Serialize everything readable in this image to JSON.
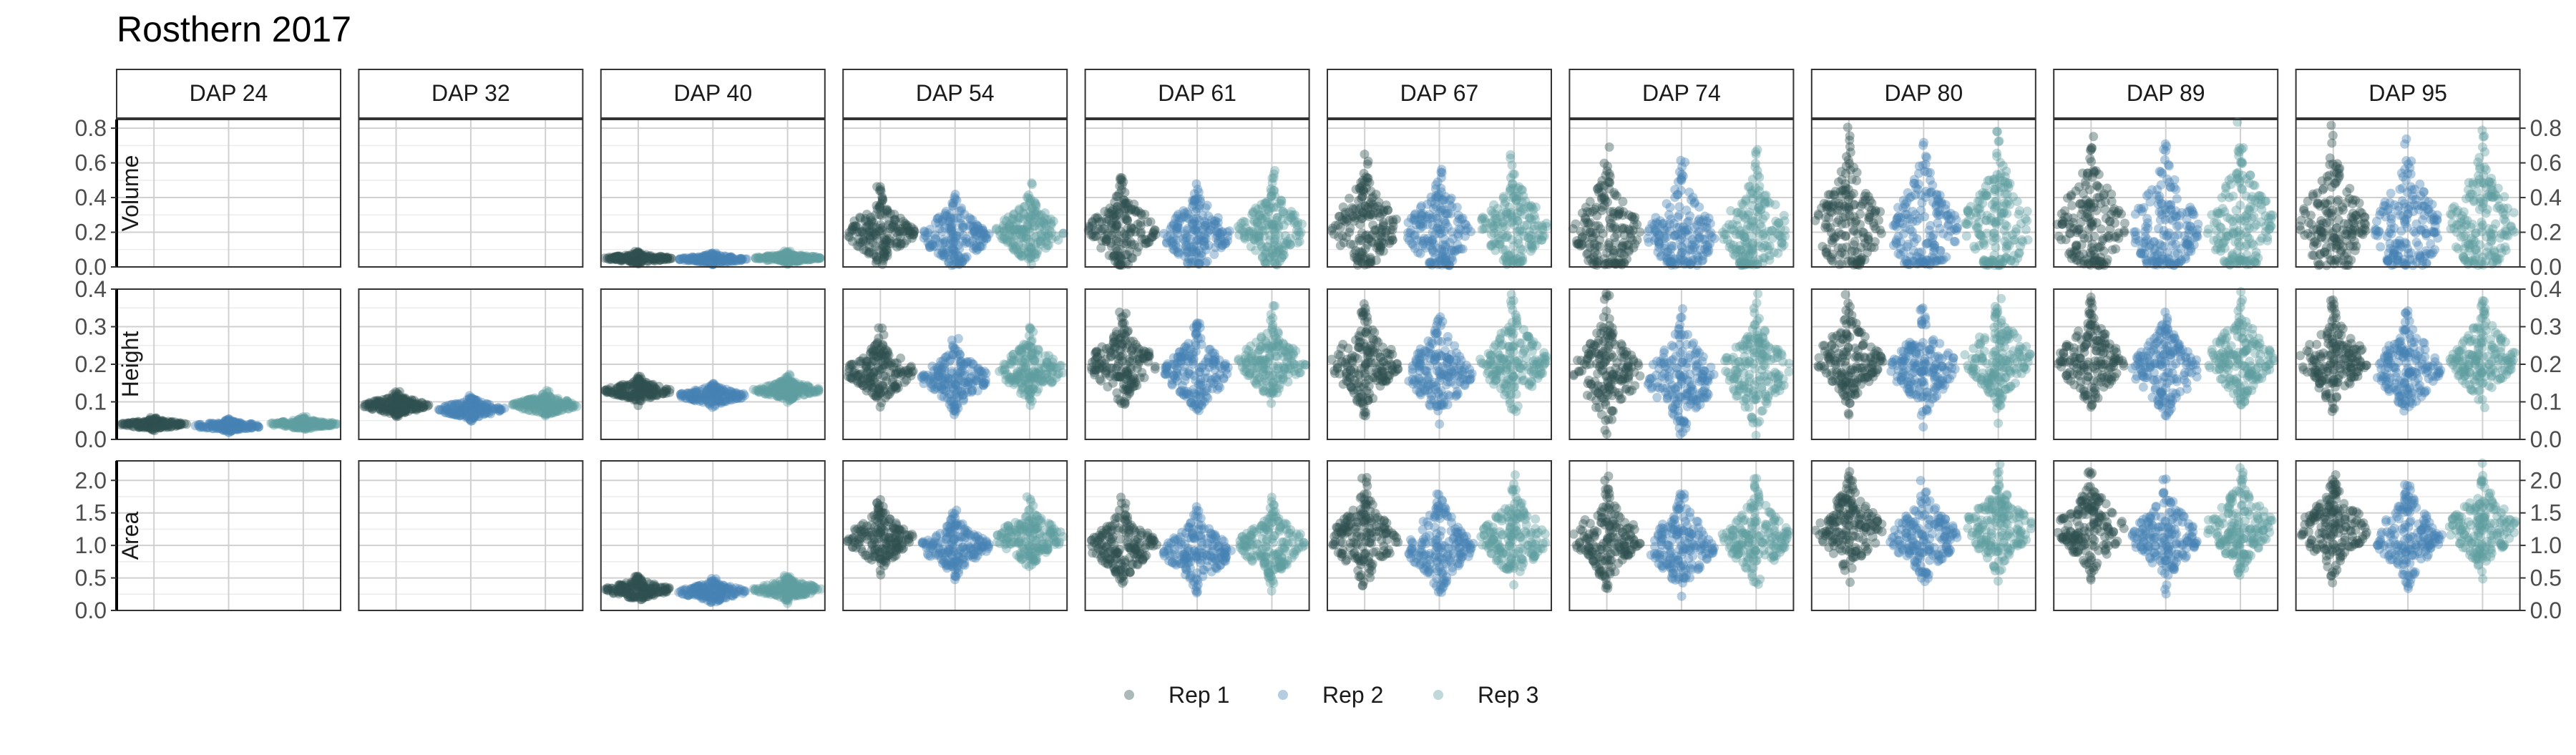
{
  "chart_data": {
    "type": "scatter",
    "title": "Rosthern 2017",
    "facet_columns": [
      "DAP 24",
      "DAP 32",
      "DAP 40",
      "DAP 54",
      "DAP 61",
      "DAP 67",
      "DAP 74",
      "DAP 80",
      "DAP 89",
      "DAP 95"
    ],
    "facet_rows": [
      {
        "label": "Volume",
        "ylim": [
          0,
          0.85
        ],
        "ticks": [
          "0.0",
          "0.2",
          "0.4",
          "0.6",
          "0.8"
        ],
        "tick_values": [
          0,
          0.2,
          0.4,
          0.6,
          0.8
        ],
        "median": [
          null,
          null,
          0.05,
          0.2,
          0.21,
          0.23,
          0.2,
          0.24,
          0.24,
          0.24
        ],
        "max": [
          null,
          null,
          0.09,
          0.48,
          0.55,
          0.65,
          0.7,
          0.82,
          0.82,
          0.82
        ]
      },
      {
        "label": "Height",
        "ylim": [
          0,
          0.4
        ],
        "ticks": [
          "0.0",
          "0.1",
          "0.2",
          "0.3",
          "0.4"
        ],
        "tick_values": [
          0,
          0.1,
          0.2,
          0.3,
          0.4
        ],
        "median": [
          0.04,
          0.09,
          0.13,
          0.18,
          0.2,
          0.2,
          0.18,
          0.21,
          0.21,
          0.21
        ],
        "max": [
          0.06,
          0.13,
          0.17,
          0.3,
          0.35,
          0.38,
          0.39,
          0.39,
          0.39,
          0.39
        ]
      },
      {
        "label": "Area",
        "ylim": [
          0,
          2.3
        ],
        "ticks": [
          "0.0",
          "0.5",
          "1.0",
          "1.5",
          "2.0"
        ],
        "tick_values": [
          0,
          0.5,
          1.0,
          1.5,
          2.0
        ],
        "median": [
          null,
          null,
          0.32,
          1.1,
          1.0,
          1.1,
          1.1,
          1.25,
          1.25,
          1.25
        ],
        "max": [
          null,
          null,
          0.55,
          1.75,
          1.8,
          2.1,
          2.1,
          2.25,
          2.25,
          2.25
        ]
      }
    ],
    "series": [
      {
        "name": "Rep 1",
        "color": "#2f4f4f",
        "scale": 1.0
      },
      {
        "name": "Rep 2",
        "color": "#4682b4",
        "scale": 0.9
      },
      {
        "name": "Rep 3",
        "color": "#5f9ea0",
        "scale": 1.02
      }
    ],
    "legend_position": "bottom",
    "grid": true
  }
}
